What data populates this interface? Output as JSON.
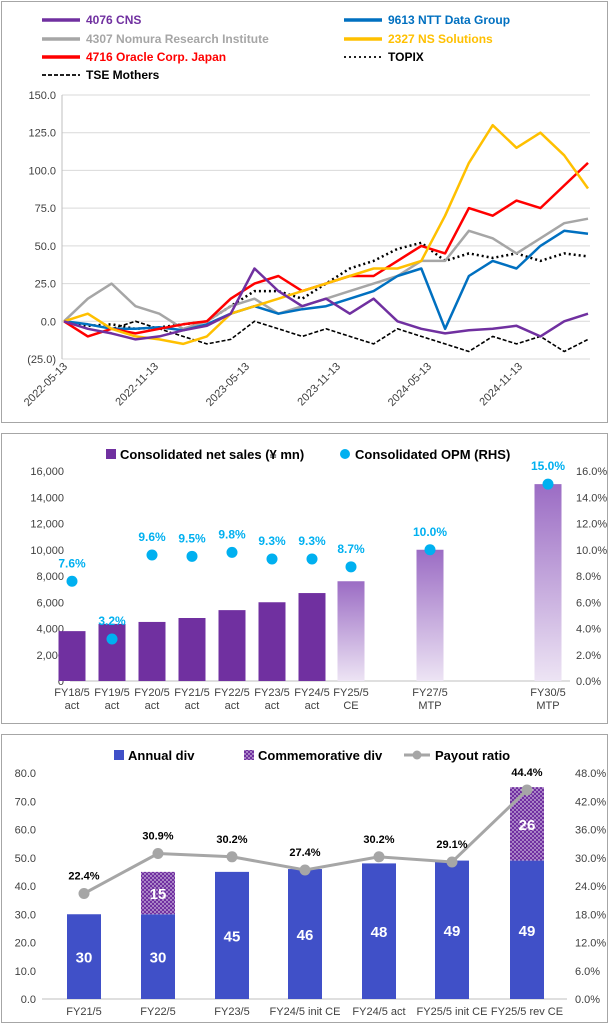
{
  "chart_data": [
    {
      "type": "line",
      "x_labels": [
        "2022-05-13",
        "2022-11-13",
        "2023-05-13",
        "2023-11-13",
        "2024-05-13",
        "2024-11-13"
      ],
      "ylim": [
        -25,
        150
      ],
      "y_ticks": [
        "(25.0)",
        "0.0",
        "25.0",
        "50.0",
        "75.0",
        "100.0",
        "125.0",
        "150.0"
      ],
      "legend": [
        {
          "label": "4076 CNS",
          "color": "#7030a0",
          "dash": "solid"
        },
        {
          "label": "9613 NTT Data Group",
          "color": "#0070c0",
          "dash": "solid"
        },
        {
          "label": "4307 Nomura Research Institute",
          "color": "#a6a6a6",
          "dash": "solid"
        },
        {
          "label": "2327 NS Solutions",
          "color": "#ffc000",
          "dash": "solid"
        },
        {
          "label": "4716  Oracle Corp. Japan",
          "color": "#ff0000",
          "dash": "solid"
        },
        {
          "label": "TOPIX",
          "color": "#000000",
          "dash": "dotted"
        },
        {
          "label": "TSE Mothers",
          "color": "#000000",
          "dash": "dashed"
        }
      ],
      "series": [
        {
          "name": "4076 CNS",
          "values": [
            0,
            -5,
            -8,
            -12,
            -10,
            -6,
            -3,
            5,
            35,
            20,
            10,
            15,
            5,
            15,
            0,
            -5,
            -8,
            -6,
            -5,
            -3,
            -10,
            0,
            5
          ]
        },
        {
          "name": "9613 NTT Data Group",
          "values": [
            0,
            -2,
            -5,
            -5,
            -4,
            -6,
            -2,
            5,
            10,
            5,
            8,
            10,
            15,
            20,
            30,
            35,
            -5,
            30,
            40,
            35,
            50,
            60,
            58
          ]
        },
        {
          "name": "4307 Nomura Research Institute",
          "values": [
            0,
            15,
            25,
            10,
            5,
            -5,
            0,
            10,
            15,
            5,
            10,
            15,
            20,
            25,
            30,
            40,
            40,
            60,
            55,
            45,
            55,
            65,
            68
          ]
        },
        {
          "name": "2327 NS Solutions",
          "values": [
            0,
            5,
            -5,
            -10,
            -12,
            -15,
            -10,
            5,
            10,
            15,
            20,
            25,
            30,
            35,
            35,
            40,
            70,
            105,
            130,
            115,
            125,
            110,
            88
          ]
        },
        {
          "name": "4716  Oracle Corp. Japan",
          "values": [
            0,
            -10,
            -5,
            -8,
            -5,
            -2,
            0,
            15,
            25,
            30,
            20,
            25,
            30,
            30,
            40,
            50,
            45,
            75,
            70,
            80,
            75,
            90,
            105
          ]
        },
        {
          "name": "TOPIX",
          "values": [
            0,
            -3,
            -2,
            -5,
            -4,
            -2,
            0,
            10,
            20,
            20,
            15,
            25,
            35,
            40,
            48,
            52,
            40,
            45,
            42,
            45,
            40,
            45,
            43
          ]
        },
        {
          "name": "TSE Mothers",
          "values": [
            0,
            5,
            -5,
            0,
            -5,
            -10,
            -15,
            -12,
            0,
            -5,
            -10,
            -5,
            -10,
            -15,
            -5,
            -10,
            -15,
            -20,
            -10,
            -15,
            -10,
            -20,
            -12
          ]
        }
      ]
    },
    {
      "type": "bar",
      "legend": [
        {
          "label": "Consolidated net sales (¥ mn)",
          "color": "#7030a0"
        },
        {
          "label": "Consolidated OPM (RHS)",
          "color": "#00b0f0"
        }
      ],
      "categories": [
        [
          "FY18/5",
          "act"
        ],
        [
          "FY19/5",
          "act"
        ],
        [
          "FY20/5",
          "act"
        ],
        [
          "FY21/5",
          "act"
        ],
        [
          "FY22/5",
          "act"
        ],
        [
          "FY23/5",
          "act"
        ],
        [
          "FY24/5",
          "act"
        ],
        [
          "FY25/5",
          "CE"
        ],
        [
          "FY27/5",
          "MTP"
        ],
        [
          "FY30/5",
          "MTP"
        ]
      ],
      "sales": [
        3800,
        4350,
        4500,
        4800,
        5400,
        6000,
        6700,
        7600,
        10000,
        15000
      ],
      "opm": [
        7.6,
        3.2,
        9.6,
        9.5,
        9.8,
        9.3,
        9.3,
        8.7,
        10.0,
        15.0
      ],
      "opm_labels": [
        "7.6%",
        "3.2%",
        "9.6%",
        "9.5%",
        "9.8%",
        "9.3%",
        "9.3%",
        "8.7%",
        "10.0%",
        "15.0%"
      ],
      "ylim": [
        0,
        16000
      ],
      "y2lim": [
        0,
        16
      ],
      "y_ticks": [
        "0",
        "2,000",
        "4,000",
        "6,000",
        "8,000",
        "10,000",
        "12,000",
        "14,000",
        "16,000"
      ],
      "y2_ticks": [
        "0.0%",
        "2.0%",
        "4.0%",
        "6.0%",
        "8.0%",
        "10.0%",
        "12.0%",
        "14.0%",
        "16.0%"
      ]
    },
    {
      "type": "bar",
      "legend": [
        {
          "label": "Annual div",
          "color": "#4050c8"
        },
        {
          "label": "Commemorative div",
          "color": "#7030a0"
        },
        {
          "label": "Payout ratio",
          "color": "#a6a6a6"
        }
      ],
      "categories": [
        "FY21/5",
        "FY22/5",
        "FY23/5",
        "FY24/5 init CE",
        "FY24/5 act",
        "FY25/5 init CE",
        "FY25/5 rev CE"
      ],
      "annual_div": [
        30,
        30,
        45,
        46,
        48,
        49,
        49
      ],
      "annual_labels": [
        "30",
        "30",
        "45",
        "46",
        "48",
        "49",
        "49"
      ],
      "commemorative_div": [
        0,
        15,
        0,
        0,
        0,
        0,
        26
      ],
      "commemorative_labels": [
        "",
        "15",
        "",
        "",
        "",
        "",
        "26"
      ],
      "payout_ratio": [
        22.4,
        30.9,
        30.2,
        27.4,
        30.2,
        29.1,
        44.4
      ],
      "payout_labels": [
        "22.4%",
        "30.9%",
        "30.2%",
        "27.4%",
        "30.2%",
        "29.1%",
        "44.4%"
      ],
      "ylim": [
        0,
        80
      ],
      "y2lim": [
        0,
        48
      ],
      "y_ticks": [
        "0.0",
        "10.0",
        "20.0",
        "30.0",
        "40.0",
        "50.0",
        "60.0",
        "70.0",
        "80.0"
      ],
      "y2_ticks": [
        "0.0%",
        "6.0%",
        "12.0%",
        "18.0%",
        "24.0%",
        "30.0%",
        "36.0%",
        "42.0%",
        "48.0%"
      ]
    }
  ]
}
